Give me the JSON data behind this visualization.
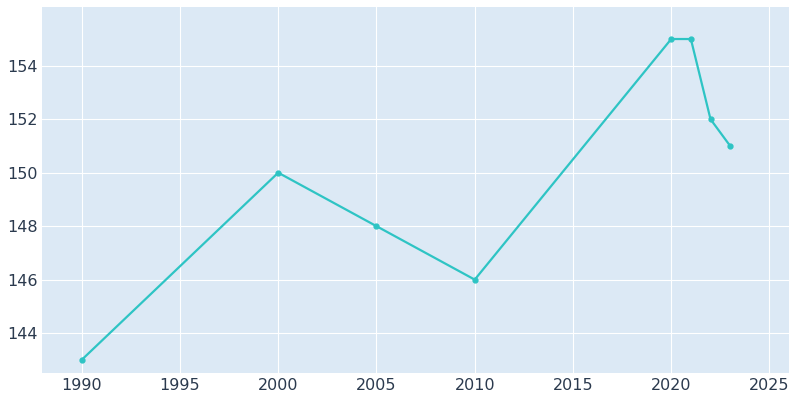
{
  "years": [
    1990,
    2000,
    2005,
    2010,
    2020,
    2021,
    2022,
    2023
  ],
  "population": [
    143,
    150,
    148,
    146,
    155,
    155,
    152,
    151
  ],
  "line_color": "#2ec4c4",
  "marker": "o",
  "marker_size": 3.5,
  "background_color": "#ffffff",
  "plot_bg_color": "#dce9f5",
  "grid_color": "#ffffff",
  "tick_color": "#2b3a4e",
  "xlim": [
    1988,
    2026
  ],
  "ylim": [
    142.5,
    156.2
  ],
  "xticks": [
    1990,
    1995,
    2000,
    2005,
    2010,
    2015,
    2020,
    2025
  ],
  "yticks": [
    144,
    146,
    148,
    150,
    152,
    154
  ],
  "linewidth": 1.6
}
